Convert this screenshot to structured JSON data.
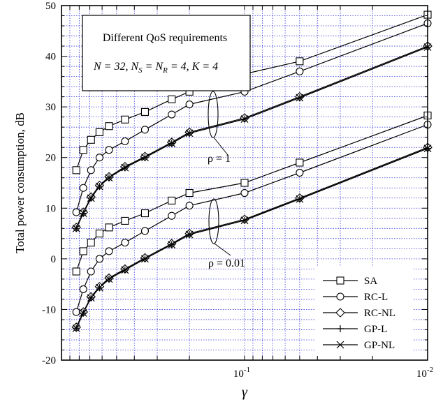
{
  "chart_data": {
    "type": "line",
    "xlabel": "γ",
    "ylabel": "Total power consumption, dB",
    "x_scale": "log",
    "xlim": [
      0.01,
      1
    ],
    "ylim": [
      -20,
      50
    ],
    "y_ticks": [
      -20,
      -10,
      0,
      10,
      20,
      30,
      40,
      50
    ],
    "x_tick_labels": [
      {
        "value": 0.1,
        "base": "10",
        "exp": "-1"
      },
      {
        "value": 0.01,
        "base": "10",
        "exp": "-2"
      }
    ],
    "grid": true,
    "legend_position": "bottom-right",
    "info_box": {
      "line1": "Different QoS requirements",
      "line2": {
        "n": "N = 32, N",
        "s_sub": "S",
        "eq": " = N",
        "r_sub": "R",
        "rest": " = 4, K = 4"
      }
    },
    "annotations": [
      {
        "text": "ρ = 1"
      },
      {
        "text": "ρ = 0.01"
      }
    ],
    "x_values": [
      0.83,
      0.76,
      0.69,
      0.62,
      0.55,
      0.45,
      0.35,
      0.25,
      0.2,
      0.1,
      0.05,
      0.01
    ],
    "series": [
      {
        "name": "SA",
        "marker": "square",
        "groups": [
          [
            17.5,
            21.5,
            23.5,
            25.0,
            26.2,
            27.5,
            29.0,
            31.5,
            33.0,
            36.5,
            39.0,
            48.2
          ],
          [
            -2.5,
            1.5,
            3.2,
            5.0,
            6.2,
            7.5,
            9.0,
            11.5,
            13.0,
            15.0,
            19.0,
            28.3
          ]
        ]
      },
      {
        "name": "RC-L",
        "marker": "circle",
        "groups": [
          [
            9.2,
            14.0,
            17.5,
            20.0,
            21.5,
            23.2,
            25.5,
            28.5,
            30.5,
            33.0,
            37.0,
            46.5
          ],
          [
            -10.5,
            -6.0,
            -2.5,
            0.0,
            1.5,
            3.2,
            5.5,
            8.5,
            10.5,
            13.0,
            17.0,
            26.5
          ]
        ]
      },
      {
        "name": "RC-NL",
        "marker": "diamond",
        "groups": [
          [
            6.2,
            9.2,
            12.2,
            14.5,
            16.2,
            18.2,
            20.2,
            23.0,
            25.0,
            27.8,
            32.0,
            42.0
          ],
          [
            -13.5,
            -10.5,
            -7.5,
            -5.5,
            -3.8,
            -2.0,
            0.2,
            3.0,
            5.0,
            7.8,
            12.0,
            22.0
          ]
        ]
      },
      {
        "name": "GP-L",
        "marker": "plus",
        "groups": [
          [
            6.0,
            9.0,
            12.0,
            14.3,
            16.0,
            18.0,
            20.0,
            22.8,
            24.8,
            27.6,
            31.8,
            41.8
          ],
          [
            -13.7,
            -10.7,
            -7.7,
            -5.7,
            -4.0,
            -2.2,
            0.0,
            2.8,
            4.8,
            7.6,
            11.8,
            21.8
          ]
        ]
      },
      {
        "name": "GP-NL",
        "marker": "x",
        "groups": [
          [
            6.0,
            9.0,
            12.0,
            14.3,
            16.0,
            18.0,
            20.0,
            22.8,
            24.8,
            27.6,
            31.8,
            41.8
          ],
          [
            -13.7,
            -10.7,
            -7.7,
            -5.7,
            -4.0,
            -2.2,
            0.0,
            2.8,
            4.8,
            7.6,
            11.8,
            21.8
          ]
        ]
      }
    ]
  }
}
